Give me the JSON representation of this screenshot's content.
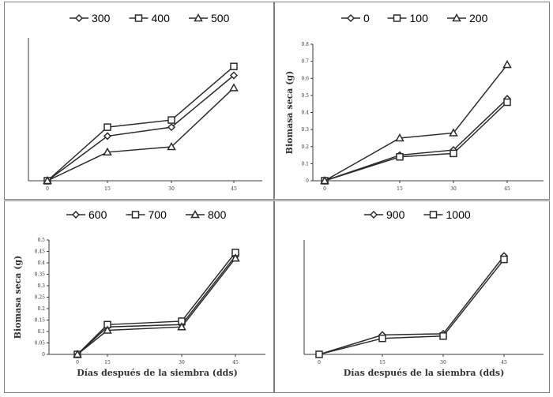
{
  "chart_data": [
    {
      "type": "line",
      "x": [
        "0",
        "15",
        "30",
        "45"
      ],
      "xlabel": "",
      "ylabel": "",
      "yticks": [],
      "ylim": [
        0,
        0.8
      ],
      "legend_position": "top",
      "series": [
        {
          "name": "300",
          "marker": "diamond",
          "values": [
            0,
            0.25,
            0.3,
            0.59
          ]
        },
        {
          "name": "400",
          "marker": "square",
          "values": [
            0,
            0.3,
            0.34,
            0.64
          ]
        },
        {
          "name": "500",
          "marker": "triangle",
          "values": [
            0,
            0.16,
            0.19,
            0.52
          ]
        }
      ]
    },
    {
      "type": "line",
      "x": [
        "0",
        "15",
        "30",
        "45"
      ],
      "xlabel": "",
      "ylabel": "Biomasa seca (g)",
      "yticks": [
        "0",
        "0.1",
        "0.2",
        "0.3",
        "0.4",
        "0.5",
        "0.6",
        "0.7",
        "0.8"
      ],
      "ylim": [
        0,
        0.8
      ],
      "legend_position": "top",
      "series": [
        {
          "name": "0",
          "marker": "diamond",
          "values": [
            0,
            0.15,
            0.18,
            0.48
          ]
        },
        {
          "name": "100",
          "marker": "square",
          "values": [
            0,
            0.14,
            0.16,
            0.46
          ]
        },
        {
          "name": "200",
          "marker": "triangle",
          "values": [
            0,
            0.25,
            0.28,
            0.68
          ]
        }
      ]
    },
    {
      "type": "line",
      "x": [
        "0",
        "15",
        "30",
        "45"
      ],
      "xlabel": "Días después de la siembra (dds)",
      "ylabel": "Biomasa seca (g)",
      "yticks": [
        "0",
        "0.05",
        "0.1",
        "0.15",
        "0.2",
        "0.25",
        "0.3",
        "0.35",
        "0.4",
        "0.45",
        "0.5"
      ],
      "ylim": [
        0,
        0.5
      ],
      "legend_position": "top",
      "series": [
        {
          "name": "600",
          "marker": "diamond",
          "values": [
            0,
            0.12,
            0.13,
            0.43
          ]
        },
        {
          "name": "700",
          "marker": "square",
          "values": [
            0,
            0.13,
            0.145,
            0.445
          ]
        },
        {
          "name": "800",
          "marker": "triangle",
          "values": [
            0,
            0.105,
            0.12,
            0.42
          ]
        }
      ]
    },
    {
      "type": "line",
      "x": [
        "0",
        "15",
        "30",
        "45"
      ],
      "xlabel": "Días después de la siembra (dds)",
      "ylabel": "",
      "yticks": [],
      "ylim": [
        0,
        0.5
      ],
      "legend_position": "top",
      "series": [
        {
          "name": "900",
          "marker": "diamond",
          "values": [
            0,
            0.085,
            0.09,
            0.43
          ]
        },
        {
          "name": "1000",
          "marker": "square",
          "values": [
            0,
            0.07,
            0.08,
            0.415
          ]
        }
      ]
    }
  ]
}
